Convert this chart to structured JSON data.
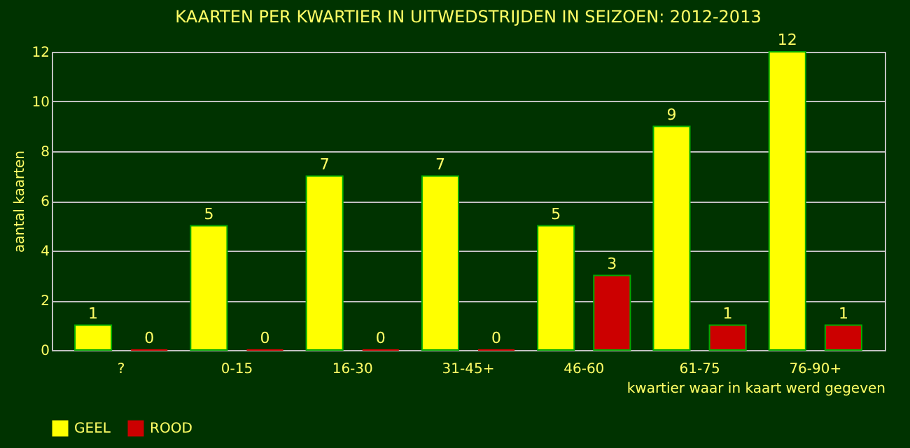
{
  "chart_data": {
    "type": "bar",
    "title": "KAARTEN PER KWARTIER IN UITWEDSTRIJDEN IN SEIZOEN: 2012-2013",
    "xlabel": "kwartier waar in kaart werd gegeven",
    "ylabel": "aantal kaarten",
    "categories": [
      "?",
      "0-15",
      "16-30",
      "31-45+",
      "46-60",
      "61-75",
      "76-90+"
    ],
    "series": [
      {
        "name": "GEEL",
        "color": "#ffff00",
        "values": [
          1,
          5,
          7,
          7,
          5,
          9,
          12
        ]
      },
      {
        "name": "ROOD",
        "color": "#cc0000",
        "values": [
          0,
          0,
          0,
          0,
          3,
          1,
          1
        ]
      }
    ],
    "ylim": [
      0,
      12
    ],
    "yticks": [
      0,
      2,
      4,
      6,
      8,
      10,
      12
    ],
    "grid": "y",
    "legend": "bottom",
    "data_labels": true
  }
}
